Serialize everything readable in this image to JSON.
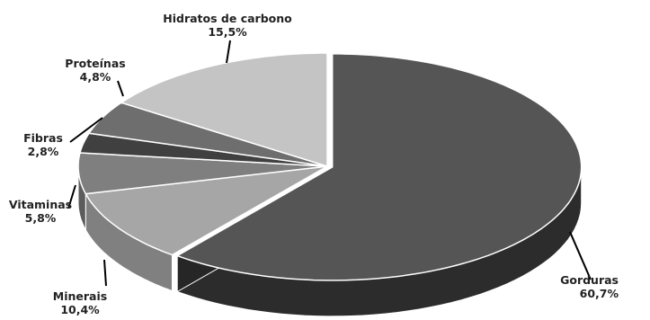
{
  "chart_data": {
    "type": "pie",
    "style": "3d-exploded-perspective",
    "title": "",
    "legend": "none",
    "categories": [
      "Gorduras",
      "Minerais",
      "Vitaminas",
      "Fibras",
      "Proteínas",
      "Hidratos de carbono"
    ],
    "values": [
      60.7,
      10.4,
      5.8,
      2.8,
      4.8,
      15.5
    ],
    "data_labels": [
      "60,7%",
      "10,4%",
      "5,8%",
      "2,8%",
      "4,8%",
      "15,5%"
    ],
    "colors": [
      "#555555",
      "#a6a6a6",
      "#7f7f7f",
      "#404040",
      "#6e6e6e",
      "#c4c4c4"
    ],
    "side_colors": [
      "#2c2c2c",
      "#808080",
      "#5c5c5c",
      "#222222",
      "#4a4a4a",
      "#9a9a9a"
    ]
  }
}
